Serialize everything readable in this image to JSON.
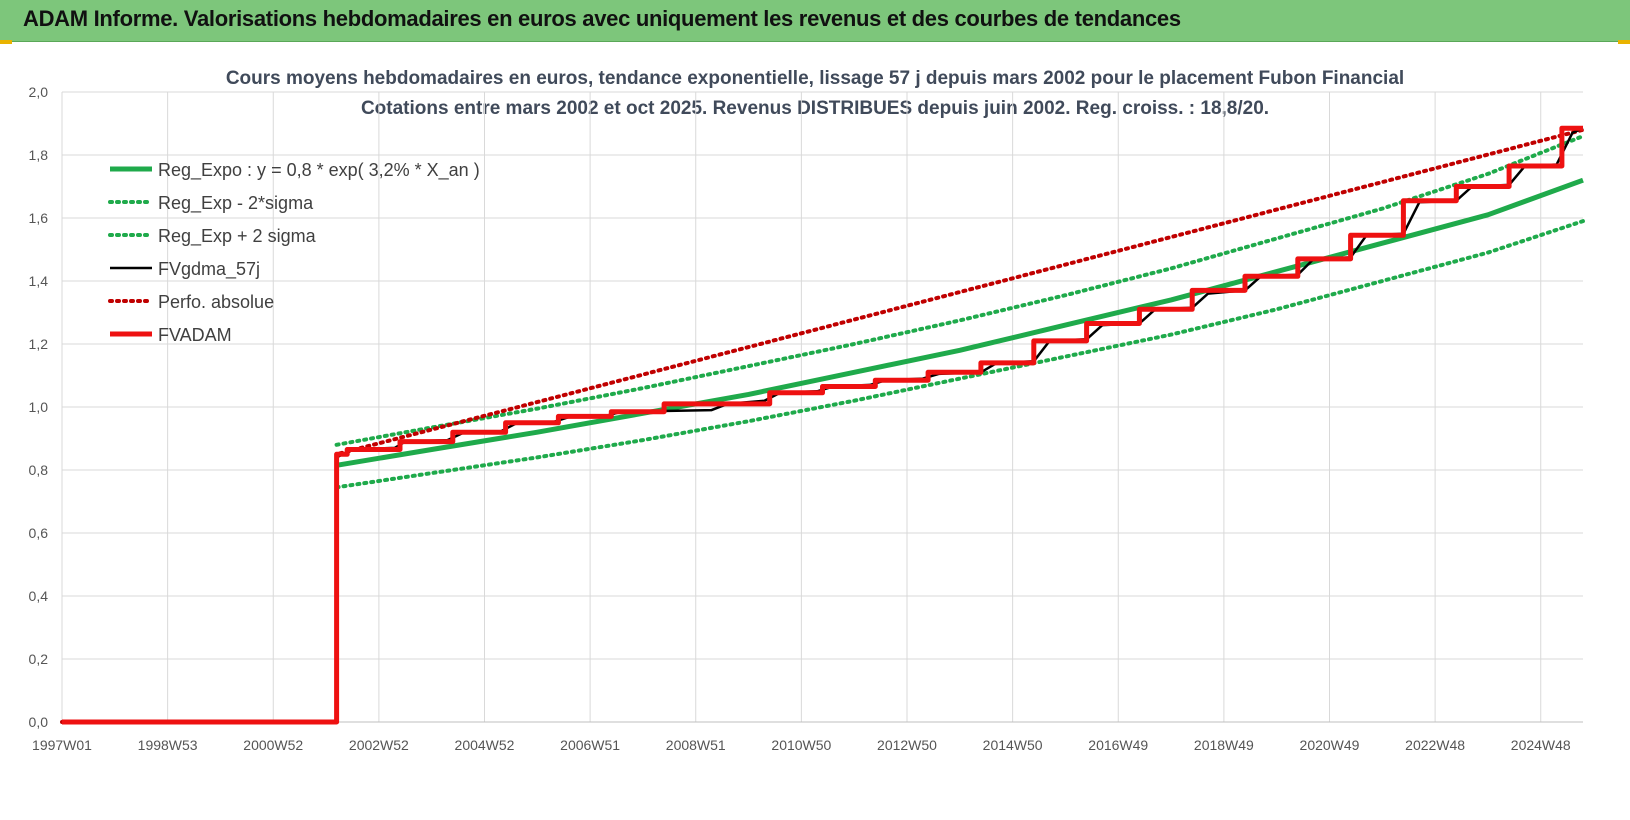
{
  "banner": {
    "title": "ADAM Informe. Valorisations hebdomadaires en euros avec uniquement les revenus et des courbes de tendances"
  },
  "colors": {
    "banner_bg": "#7dc67b",
    "reg_green": "#1faa4b",
    "fvgdma_black": "#000000",
    "perfo_red": "#c00000",
    "fvadam_red": "#ee1111",
    "grid": "#d9d9d9",
    "corner_accent": "#e9b300"
  },
  "chart_data": {
    "type": "line",
    "title": "Cours moyens hebdomadaires en euros, tendance exponentielle, lissage 57 j depuis mars 2002 pour le placement Fubon Financial",
    "subtitle": "Cotations entre mars 2002 et oct 2025.  Revenus DISTRIBUES depuis juin 2002. Reg. croiss. : 18,8/20.",
    "xlabel": "",
    "ylabel": "",
    "x_range": [
      1997.0,
      2025.8
    ],
    "ylim": [
      0,
      2.0
    ],
    "grid": true,
    "legend_position": "top-left",
    "x_tick_labels": [
      "1997W01",
      "1998W53",
      "2000W52",
      "2002W52",
      "2004W52",
      "2006W51",
      "2008W51",
      "2010W50",
      "2012W50",
      "2014W50",
      "2016W49",
      "2018W49",
      "2020W49",
      "2022W48",
      "2024W48"
    ],
    "x_tick_values": [
      1997.0,
      1999.0,
      2001.0,
      2003.0,
      2005.0,
      2007.0,
      2009.0,
      2011.0,
      2013.0,
      2015.0,
      2017.0,
      2019.0,
      2021.0,
      2023.0,
      2025.0
    ],
    "y_tick_labels": [
      "0,0",
      "0,2",
      "0,4",
      "0,6",
      "0,8",
      "1,0",
      "1,2",
      "1,4",
      "1,6",
      "1,8",
      "2,0"
    ],
    "y_tick_values": [
      0,
      0.2,
      0.4,
      0.6,
      0.8,
      1.0,
      1.2,
      1.4,
      1.6,
      1.8,
      2.0
    ],
    "series": [
      {
        "name": "Reg_Expo : y = 0,8 * exp( 3,2% *  X_an )",
        "style": "solid-thick",
        "color": "#1faa4b",
        "x": [
          2002.2,
          2004.0,
          2006.0,
          2008.0,
          2010.0,
          2012.0,
          2014.0,
          2016.0,
          2018.0,
          2020.0,
          2022.0,
          2024.0,
          2025.8
        ],
        "y": [
          0.815,
          0.865,
          0.92,
          0.98,
          1.04,
          1.11,
          1.18,
          1.26,
          1.34,
          1.43,
          1.52,
          1.61,
          1.72
        ]
      },
      {
        "name": "Reg_Exp - 2*sigma",
        "style": "dotted",
        "color": "#1faa4b",
        "x": [
          2002.2,
          2004.0,
          2006.0,
          2008.0,
          2010.0,
          2012.0,
          2014.0,
          2016.0,
          2018.0,
          2020.0,
          2022.0,
          2024.0,
          2025.8
        ],
        "y": [
          0.745,
          0.79,
          0.84,
          0.895,
          0.955,
          1.02,
          1.09,
          1.16,
          1.23,
          1.31,
          1.4,
          1.49,
          1.59
        ]
      },
      {
        "name": "Reg_Exp + 2 sigma",
        "style": "dotted",
        "color": "#1faa4b",
        "x": [
          2002.2,
          2004.0,
          2006.0,
          2008.0,
          2010.0,
          2012.0,
          2014.0,
          2016.0,
          2018.0,
          2020.0,
          2022.0,
          2024.0,
          2025.8
        ],
        "y": [
          0.88,
          0.935,
          0.995,
          1.06,
          1.13,
          1.2,
          1.275,
          1.355,
          1.44,
          1.535,
          1.63,
          1.74,
          1.86
        ]
      },
      {
        "name": "FVgdma_57j",
        "style": "solid",
        "color": "#000000",
        "x": [
          1997.0,
          2002.2,
          2002.2,
          2002.5,
          2003.3,
          2003.5,
          2004.3,
          2004.6,
          2005.3,
          2005.6,
          2006.3,
          2006.6,
          2007.3,
          2007.6,
          2009.3,
          2009.6,
          2010.3,
          2010.6,
          2011.3,
          2011.6,
          2012.3,
          2012.6,
          2013.3,
          2013.6,
          2014.4,
          2014.7,
          2015.4,
          2015.7,
          2016.4,
          2016.7,
          2017.4,
          2017.7,
          2018.4,
          2018.7,
          2019.4,
          2019.7,
          2020.4,
          2020.7,
          2021.4,
          2021.7,
          2022.4,
          2022.7,
          2023.4,
          2023.7,
          2024.4,
          2024.7,
          2025.3,
          2025.6,
          2025.8
        ],
        "y": [
          0,
          0,
          0.84,
          0.865,
          0.87,
          0.89,
          0.895,
          0.918,
          0.922,
          0.948,
          0.952,
          0.968,
          0.972,
          0.985,
          0.99,
          1.01,
          1.02,
          1.045,
          1.05,
          1.065,
          1.07,
          1.085,
          1.09,
          1.105,
          1.11,
          1.14,
          1.145,
          1.21,
          1.215,
          1.26,
          1.265,
          1.31,
          1.315,
          1.36,
          1.37,
          1.415,
          1.42,
          1.47,
          1.475,
          1.545,
          1.55,
          1.65,
          1.655,
          1.7,
          1.705,
          1.765,
          1.77,
          1.87,
          1.885
        ]
      },
      {
        "name": "Perfo. absolue",
        "style": "dotted",
        "color": "#c00000",
        "x": [
          1997.0,
          2002.2,
          2002.2,
          2025.8
        ],
        "y": [
          0,
          0,
          0.85,
          1.88
        ]
      },
      {
        "name": "FVADAM",
        "style": "step-thick",
        "color": "#ee1111",
        "step_x": [
          1997.0,
          2002.2,
          2002.4,
          2003.4,
          2004.4,
          2005.4,
          2006.4,
          2007.4,
          2008.4,
          2010.4,
          2011.4,
          2012.4,
          2013.4,
          2014.4,
          2015.4,
          2016.4,
          2017.4,
          2018.4,
          2019.4,
          2020.4,
          2021.4,
          2022.4,
          2023.4,
          2024.4,
          2025.4
        ],
        "step_y": [
          0,
          0.85,
          0.865,
          0.89,
          0.92,
          0.95,
          0.97,
          0.985,
          1.01,
          1.045,
          1.065,
          1.085,
          1.11,
          1.14,
          1.21,
          1.265,
          1.31,
          1.37,
          1.415,
          1.47,
          1.545,
          1.655,
          1.7,
          1.765,
          1.885
        ],
        "end_x": 2025.8
      }
    ]
  }
}
